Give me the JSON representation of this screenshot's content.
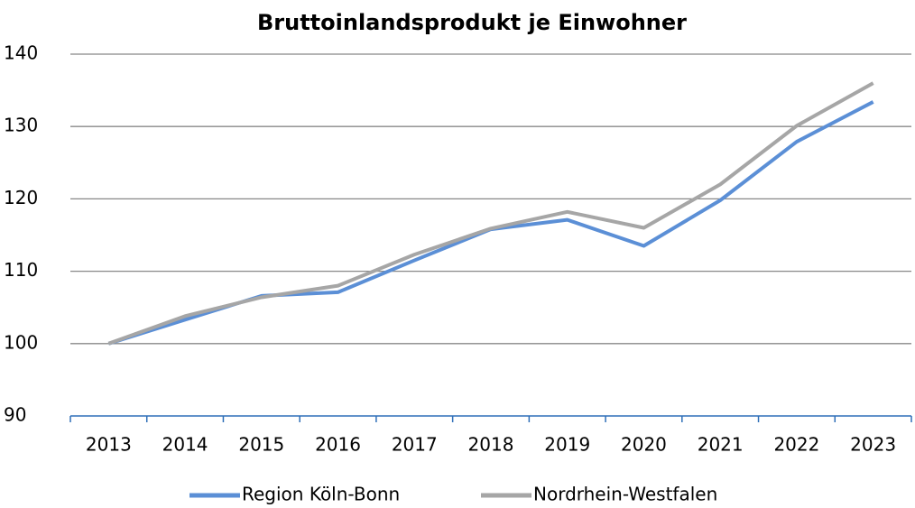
{
  "chart_data": {
    "type": "line",
    "title": "Bruttoinlandsprodukt je Einwohner",
    "categories": [
      "2013",
      "2014",
      "2015",
      "2016",
      "2017",
      "2018",
      "2019",
      "2020",
      "2021",
      "2022",
      "2023"
    ],
    "series": [
      {
        "name": "Region Köln-Bonn",
        "color": "#5b8fd6",
        "values": [
          100,
          103.3,
          106.6,
          107.1,
          111.5,
          115.8,
          117.1,
          113.5,
          119.8,
          127.9,
          133.4
        ]
      },
      {
        "name": "Nordrhein-Westfalen",
        "color": "#a6a6a6",
        "values": [
          100,
          103.8,
          106.4,
          108.0,
          112.3,
          115.9,
          118.2,
          116.0,
          122.0,
          130.1,
          136.0
        ]
      }
    ],
    "ylim": [
      90,
      140
    ],
    "yticks": [
      90,
      100,
      110,
      120,
      130,
      140
    ],
    "grid": true,
    "legend": "bottom"
  }
}
